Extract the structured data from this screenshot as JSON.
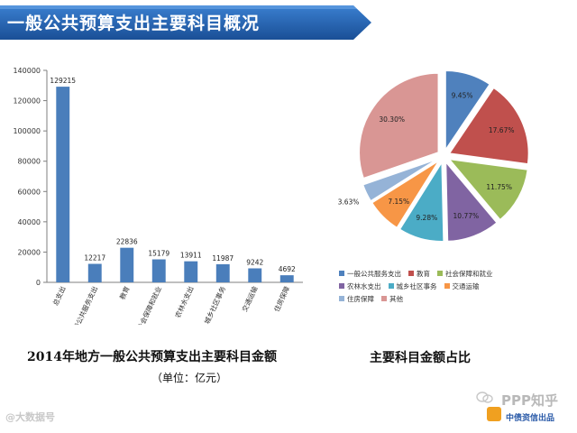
{
  "header": {
    "title": "一般公共预算支出主要科目概况",
    "banner_color": "#1f5fa8"
  },
  "bar_caption": "2014年地方一般公共预算支出主要科目金额",
  "bar_unit": "（单位：亿元）",
  "pie_caption": "主要科目金额占比",
  "watermark": {
    "left": "@大数据号",
    "right_big": "PPP知乎",
    "right_small": "中债资信出品"
  },
  "chart_data": [
    {
      "type": "bar",
      "categories": [
        "总支出",
        "一般公共服务支出",
        "教育",
        "社会保障和就业",
        "农林水支出",
        "城乡社区事务",
        "交通运输",
        "住房保障"
      ],
      "values": [
        129215,
        12217,
        22836,
        15179,
        13911,
        11987,
        9242,
        4692
      ],
      "data_labels": [
        "129215",
        "12217",
        "22836",
        "15179",
        "13911",
        "11987",
        "9242",
        "4692"
      ],
      "ylim": [
        0,
        140000
      ],
      "yticks": [
        0,
        20000,
        40000,
        60000,
        80000,
        100000,
        120000,
        140000
      ],
      "ytick_labels": [
        "0",
        "20000",
        "40000",
        "60000",
        "80000",
        "100000",
        "120000",
        "140000"
      ],
      "color": "#4a7ebb",
      "grid": false
    },
    {
      "type": "pie",
      "labels": [
        "一般公共服务支出",
        "教育",
        "社会保障和就业",
        "农林水支出",
        "城乡社区事务",
        "交通运输",
        "住房保障",
        "其他"
      ],
      "values": [
        9.45,
        17.67,
        11.75,
        10.77,
        9.28,
        7.15,
        3.63,
        30.3
      ],
      "value_labels": [
        "9.45%",
        "17.67%",
        "11.75%",
        "10.77%",
        "9.28%",
        "7.15%",
        "3.63%",
        "30.30%"
      ],
      "colors": [
        "#4f81bd",
        "#c0504d",
        "#9bbb59",
        "#8064a2",
        "#4bacc6",
        "#f79646",
        "#95b3d7",
        "#d99694"
      ],
      "legend_position": "bottom",
      "legend_rows": [
        [
          0,
          1,
          2
        ],
        [
          3,
          4,
          5
        ],
        [
          6,
          7
        ]
      ]
    }
  ]
}
